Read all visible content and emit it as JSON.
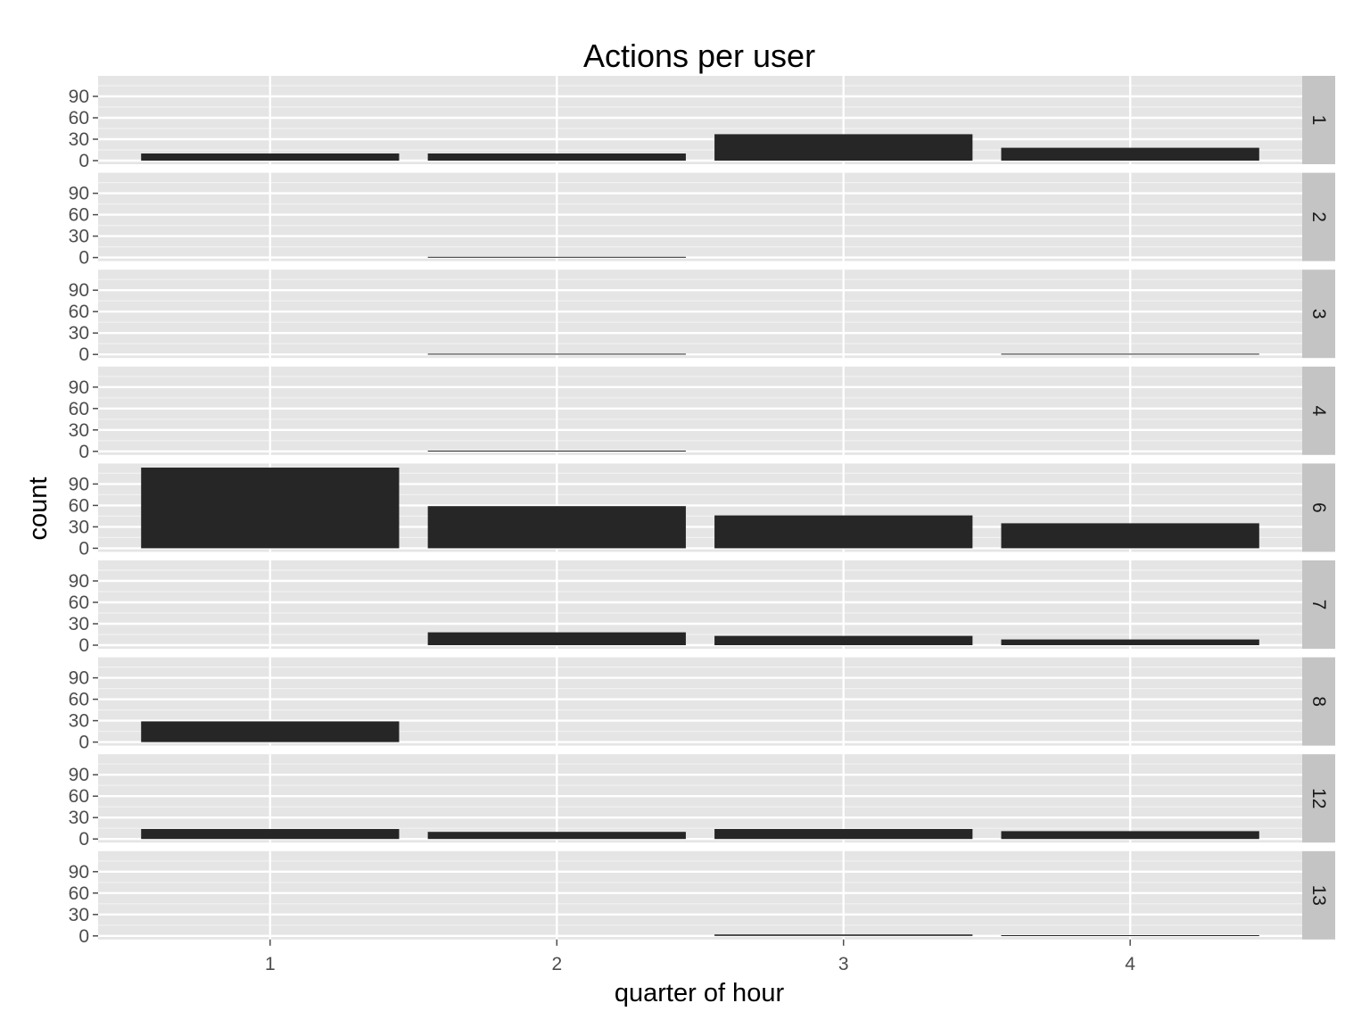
{
  "chart_data": {
    "type": "bar",
    "title": "Actions per user",
    "xlabel": "quarter of hour",
    "ylabel": "count",
    "categories": [
      "1",
      "2",
      "3",
      "4"
    ],
    "y_ticks": [
      "0",
      "30",
      "60",
      "90"
    ],
    "ylim": [
      0,
      115
    ],
    "grid": true,
    "facet_strip_position": "right",
    "colors": {
      "panel_background": "#e5e5e5",
      "grid_major": "#ffffff",
      "grid_minor": "#f2f2f2",
      "bar": "#262626",
      "strip_background": "#c4c4c4",
      "tick_label": "#4d4d4d"
    },
    "facets": [
      {
        "label": "1",
        "values": [
          10,
          10,
          37,
          18
        ]
      },
      {
        "label": "2",
        "values": [
          0,
          1,
          0,
          0
        ]
      },
      {
        "label": "3",
        "values": [
          0,
          1,
          0,
          1
        ]
      },
      {
        "label": "4",
        "values": [
          0,
          1,
          0,
          0
        ]
      },
      {
        "label": "6",
        "values": [
          113,
          59,
          46,
          35
        ]
      },
      {
        "label": "7",
        "values": [
          0,
          18,
          13,
          8
        ]
      },
      {
        "label": "8",
        "values": [
          29,
          0,
          0,
          0
        ]
      },
      {
        "label": "12",
        "values": [
          14,
          10,
          14,
          11
        ]
      },
      {
        "label": "13",
        "values": [
          0,
          0,
          2,
          1
        ]
      }
    ]
  }
}
